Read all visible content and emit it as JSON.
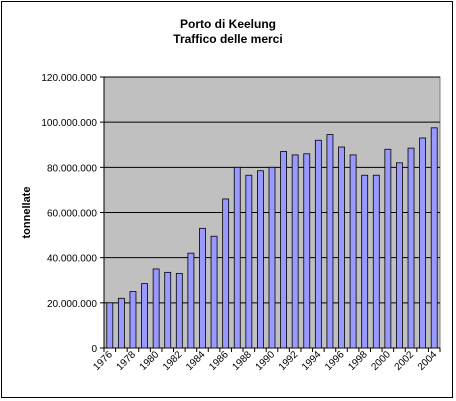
{
  "chart_data": {
    "type": "bar",
    "title": "Porto di Keelung",
    "subtitle": "Traffico delle merci",
    "ylabel": "tonnellate",
    "xlabel": "",
    "ylim": [
      0,
      120000000
    ],
    "y_ticks": [
      0,
      20000000,
      40000000,
      60000000,
      80000000,
      100000000,
      120000000
    ],
    "y_tick_labels": [
      "0",
      "20.000.000",
      "40.000.000",
      "60.000.000",
      "80.000.000",
      "100.000.000",
      "120.000.000"
    ],
    "grid": true,
    "legend": "none",
    "colors": {
      "bar_fill": "#9999ff",
      "bar_stroke": "#000000",
      "plot_bg": "#c0c0c0",
      "gridline": "#000000"
    },
    "categories": [
      "1976",
      "1977",
      "1978",
      "1979",
      "1980",
      "1981",
      "1982",
      "1983",
      "1984",
      "1985",
      "1986",
      "1987",
      "1988",
      "1989",
      "1990",
      "1991",
      "1992",
      "1993",
      "1994",
      "1995",
      "1996",
      "1997",
      "1998",
      "1999",
      "2000",
      "2001",
      "2002",
      "2003",
      "2004"
    ],
    "x_tick_labels": [
      "1976",
      "",
      "1978",
      "",
      "1980",
      "",
      "1982",
      "",
      "1984",
      "",
      "1986",
      "",
      "1988",
      "",
      "1990",
      "",
      "1992",
      "",
      "1994",
      "",
      "1996",
      "",
      "1998",
      "",
      "2000",
      "",
      "2002",
      "",
      "2004"
    ],
    "values": [
      20000000,
      22000000,
      25000000,
      28500000,
      35000000,
      33500000,
      33000000,
      42000000,
      53000000,
      49500000,
      66000000,
      80000000,
      76500000,
      78500000,
      80000000,
      87000000,
      85500000,
      86000000,
      92000000,
      94500000,
      89000000,
      85500000,
      76500000,
      76500000,
      88000000,
      82000000,
      88500000,
      93000000,
      97500000
    ]
  }
}
